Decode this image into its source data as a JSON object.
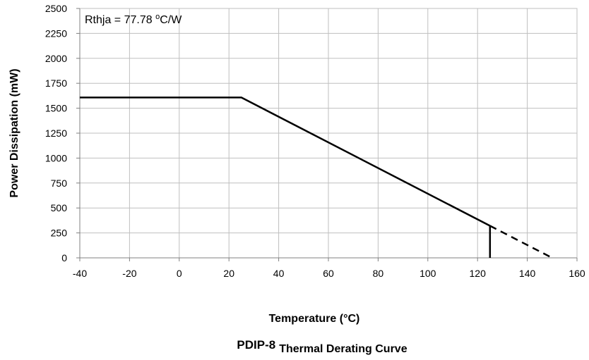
{
  "chart_data": {
    "type": "line",
    "title_prefix": "PDIP-8",
    "title_suffix": "Thermal Derating Curve",
    "xlabel": "Temperature (°C)",
    "ylabel": "Power Dissipation (mW)",
    "xlim": [
      -40,
      160
    ],
    "ylim": [
      0,
      2500
    ],
    "x_ticks": [
      "-40",
      "-20",
      "0",
      "20",
      "40",
      "60",
      "80",
      "100",
      "120",
      "140",
      "160"
    ],
    "y_ticks": [
      "0",
      "250",
      "500",
      "750",
      "1000",
      "1250",
      "1500",
      "1750",
      "2000",
      "2250",
      "2500"
    ],
    "grid": true,
    "annotation": {
      "prefix": "Rthja = 77.78 ",
      "superscript": "o",
      "suffix": "C/W"
    },
    "series": [
      {
        "style": "solid",
        "points": [
          [
            -40,
            1607
          ],
          [
            25,
            1607
          ],
          [
            125,
            321
          ]
        ]
      },
      {
        "style": "dashed",
        "points": [
          [
            125,
            321
          ],
          [
            150,
            0
          ]
        ]
      },
      {
        "style": "solid",
        "points": [
          [
            125,
            321
          ],
          [
            125,
            0
          ]
        ]
      }
    ],
    "colors": {
      "line": "#000000",
      "grid": "#bfbfbf",
      "axis": "#808080"
    }
  }
}
